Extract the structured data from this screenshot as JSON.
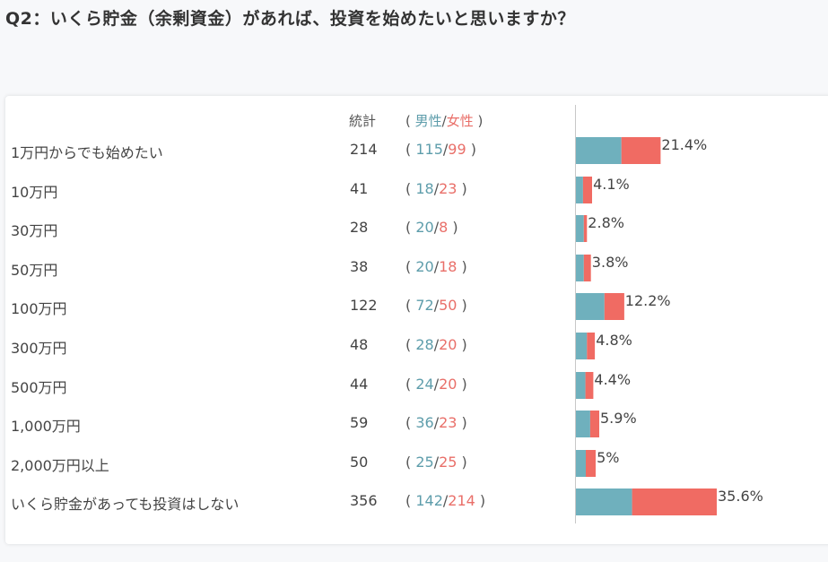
{
  "question": "Q2：いくら貯金（余剰資金）があれば、投資を始めたいと思いますか？",
  "headers": {
    "total": "統計",
    "open": "(",
    "male": "男性",
    "slash": "/",
    "female": "女性",
    "close": ")"
  },
  "colors": {
    "male": "#6fb0bd",
    "female": "#f06b63"
  },
  "chart_data": {
    "type": "bar",
    "orientation": "horizontal",
    "stacked": true,
    "series_names": [
      "男性",
      "女性"
    ],
    "categories": [
      "1万円からでも始めたい",
      "10万円",
      "30万円",
      "50万円",
      "100万円",
      "300万円",
      "500万円",
      "1,000万円",
      "2,000万円以上",
      "いくら貯金があっても投資はしない"
    ],
    "totals": [
      214,
      41,
      28,
      38,
      122,
      48,
      44,
      59,
      50,
      356
    ],
    "male": [
      115,
      18,
      20,
      20,
      72,
      28,
      24,
      36,
      25,
      142
    ],
    "female": [
      99,
      23,
      8,
      18,
      50,
      20,
      20,
      23,
      25,
      214
    ],
    "percent_labels": [
      "21.4%",
      "4.1%",
      "2.8%",
      "3.8%",
      "12.2%",
      "4.8%",
      "4.4%",
      "5.9%",
      "5%",
      "35.6%"
    ]
  }
}
